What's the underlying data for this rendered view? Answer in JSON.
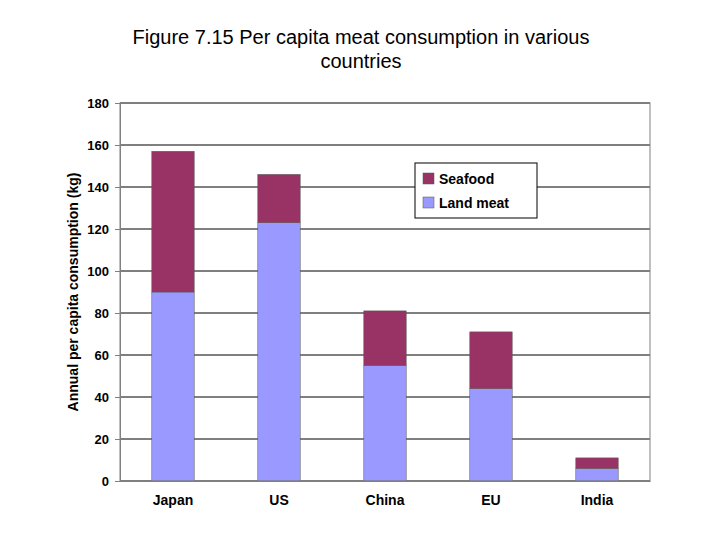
{
  "chart_data": {
    "type": "bar",
    "title": "Figure 7.15 Per capita meat consumption in various countries",
    "y_label": "Annual per capita consumption (kg)",
    "categories": [
      "Japan",
      "US",
      "China",
      "EU",
      "India"
    ],
    "series": [
      {
        "name": "Land meat",
        "color": "#9999ff",
        "values": [
          90,
          123,
          55,
          44,
          6
        ]
      },
      {
        "name": "Seafood",
        "color": "#993366",
        "values": [
          67,
          23,
          26,
          27,
          5
        ]
      }
    ],
    "stacked": true,
    "ylim": [
      0,
      180
    ],
    "yticks": [
      0,
      20,
      40,
      60,
      80,
      100,
      120,
      140,
      160,
      180
    ],
    "grid": true,
    "legend": "upper right"
  }
}
